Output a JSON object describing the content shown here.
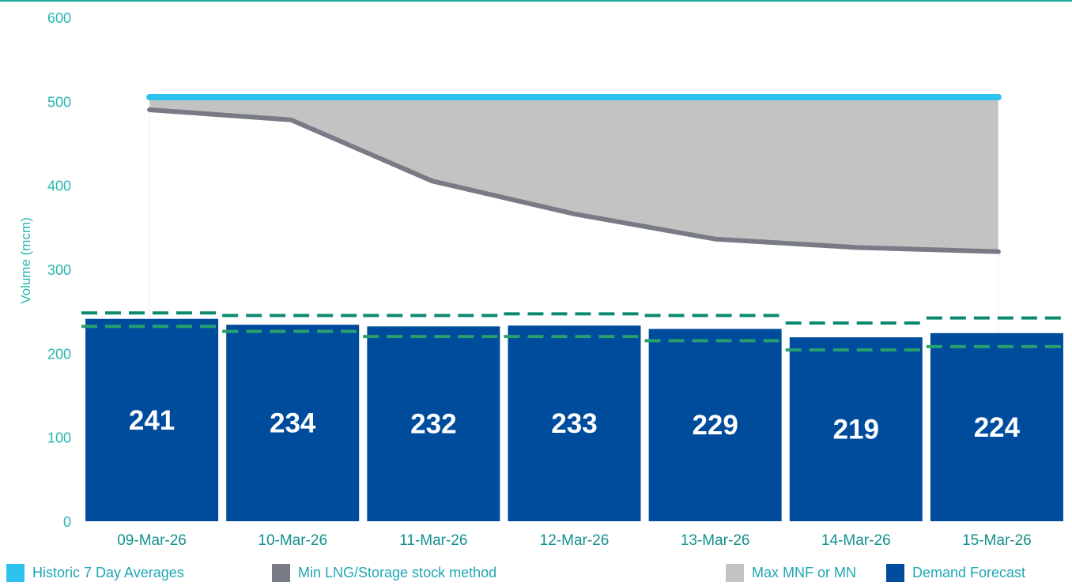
{
  "chart_data": {
    "type": "bar",
    "title": "",
    "xlabel": "",
    "ylabel": "Volume (mcm)",
    "ylim": [
      0,
      600
    ],
    "yticks": [
      0,
      100,
      200,
      300,
      400,
      500,
      600
    ],
    "grid": false,
    "legend_position": "bottom",
    "categories": [
      "09-Mar-26",
      "10-Mar-26",
      "11-Mar-26",
      "12-Mar-26",
      "13-Mar-26",
      "14-Mar-26",
      "15-Mar-26"
    ],
    "series": [
      {
        "name": "Demand Forecast",
        "kind": "bar",
        "color": "#004c9c",
        "values": [
          241,
          234,
          232,
          233,
          229,
          219,
          224
        ],
        "labels": [
          "241",
          "234",
          "232",
          "233",
          "229",
          "219",
          "224"
        ]
      },
      {
        "name": "Historic 7 Day Averages",
        "kind": "line",
        "color": "#2ec3ef",
        "values": [
          505,
          505,
          505,
          505,
          505,
          505,
          505
        ]
      },
      {
        "name": "Min LNG/Storage stock method",
        "kind": "line",
        "color": "#787b85",
        "values": [
          490,
          478,
          405,
          366,
          336,
          326,
          321
        ]
      },
      {
        "name": "Max MNF or MN",
        "kind": "area",
        "color": "#c3c3c3",
        "values": [
          505,
          505,
          505,
          505,
          505,
          505,
          505
        ]
      }
    ],
    "reference_lines": [
      {
        "kind": "dashed-step",
        "color": "#0c8a70",
        "values": [
          248,
          245,
          245,
          247,
          245,
          236,
          242
        ]
      },
      {
        "kind": "dashed-step",
        "color": "#28a06e",
        "values": [
          232,
          226,
          220,
          220,
          215,
          204,
          208
        ]
      }
    ]
  },
  "legend": {
    "items": [
      {
        "label": "Historic 7 Day Averages",
        "color": "#2ec3ef"
      },
      {
        "label": "Min LNG/Storage stock method",
        "color": "#787b85"
      },
      {
        "label": "Max MNF or MN",
        "color": "#c3c3c3"
      },
      {
        "label": "Demand Forecast",
        "color": "#004c9c"
      }
    ]
  }
}
